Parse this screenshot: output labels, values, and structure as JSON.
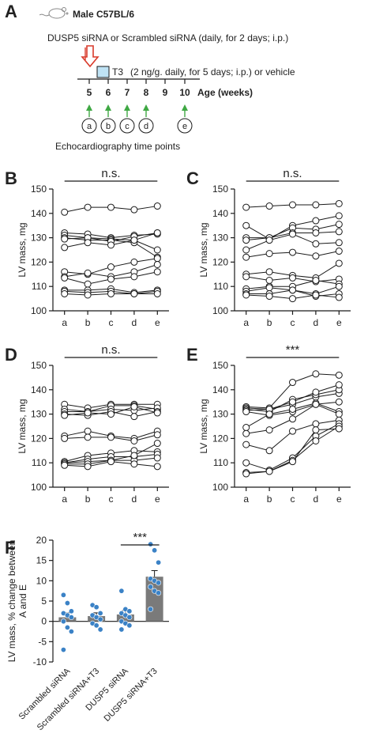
{
  "colors": {
    "ink": "#1a1a1a",
    "arrow_red": "#d93a2b",
    "arrow_green": "#3fa843",
    "t3_box": "#bfe3f5",
    "bar_gray": "#7a7a7a",
    "dot_blue": "#3b82c6"
  },
  "panel_a": {
    "letter": "A",
    "mouse_icon": "mouse-icon",
    "strain": "Male C57BL/6",
    "sirna_text": "DUSP5 siRNA or Scrambled siRNA (daily, for 2 days; i.p.)",
    "t3_label": "T3",
    "t3_text": "(2 ng/g. daily, for 5 days; i.p.) or vehicle",
    "weeks": [
      "5",
      "6",
      "7",
      "8",
      "9",
      "10"
    ],
    "age_label": "Age (weeks)",
    "echo_points": [
      "a",
      "b",
      "c",
      "d",
      "e"
    ],
    "echo_caption": "Echocardiography time points"
  },
  "chart_data": [
    {
      "panel": "B",
      "type": "line",
      "x": [
        "a",
        "b",
        "c",
        "d",
        "e"
      ],
      "ylabel": "LV mass, mg",
      "ylim": [
        100,
        150
      ],
      "yticks": [
        100,
        110,
        120,
        130,
        140,
        150
      ],
      "significance": "n.s.",
      "series": [
        {
          "values": [
            140.5,
            142.5,
            142.5,
            141.5,
            143
          ]
        },
        {
          "values": [
            132,
            131.5,
            130,
            131,
            131.5
          ]
        },
        {
          "values": [
            131,
            130,
            129.5,
            129,
            132
          ]
        },
        {
          "values": [
            130,
            129,
            129,
            128,
            122
          ]
        },
        {
          "values": [
            129.5,
            130,
            128.5,
            130.5,
            132
          ]
        },
        {
          "values": [
            126,
            128,
            127,
            129,
            125
          ]
        },
        {
          "values": [
            116,
            115,
            118,
            120,
            121.5
          ]
        },
        {
          "values": [
            114,
            115.5,
            114,
            116,
            119
          ]
        },
        {
          "values": [
            113.5,
            111,
            113,
            114,
            116
          ]
        },
        {
          "values": [
            108.5,
            108.5,
            109,
            107.5,
            108.5
          ]
        },
        {
          "values": [
            108,
            107.5,
            108,
            107,
            108
          ]
        },
        {
          "values": [
            107,
            106.5,
            107,
            107,
            107
          ]
        }
      ]
    },
    {
      "panel": "C",
      "type": "line",
      "x": [
        "a",
        "b",
        "c",
        "d",
        "e"
      ],
      "ylabel": "LV mass, mg",
      "ylim": [
        100,
        150
      ],
      "yticks": [
        100,
        110,
        120,
        130,
        140,
        150
      ],
      "significance": "n.s.",
      "series": [
        {
          "values": [
            142.5,
            143,
            143.5,
            143.5,
            144
          ]
        },
        {
          "values": [
            135,
            129.5,
            135,
            137,
            139
          ]
        },
        {
          "values": [
            130,
            130,
            134,
            133.5,
            135.5
          ]
        },
        {
          "values": [
            129,
            130,
            132,
            132,
            132.5
          ]
        },
        {
          "values": [
            125,
            129,
            131.5,
            127.5,
            128
          ]
        },
        {
          "values": [
            122,
            123.5,
            124,
            122.5,
            124.5
          ]
        },
        {
          "values": [
            115,
            116,
            114.5,
            113.5,
            119.5
          ]
        },
        {
          "values": [
            114,
            112.5,
            113.5,
            112,
            113
          ]
        },
        {
          "values": [
            109,
            110,
            110,
            112.5,
            111
          ]
        },
        {
          "values": [
            108,
            109.5,
            108.5,
            106,
            107
          ]
        },
        {
          "values": [
            107,
            107,
            108.5,
            107,
            110
          ]
        },
        {
          "values": [
            106.5,
            106,
            105,
            106.5,
            105.5
          ]
        }
      ]
    },
    {
      "panel": "D",
      "type": "line",
      "x": [
        "a",
        "b",
        "c",
        "d",
        "e"
      ],
      "ylabel": "LV mass, mg",
      "ylim": [
        100,
        150
      ],
      "yticks": [
        100,
        110,
        120,
        130,
        140,
        150
      ],
      "significance": "n.s.",
      "series": [
        {
          "values": [
            134,
            132.5,
            134,
            134,
            134
          ]
        },
        {
          "values": [
            132,
            131,
            133.5,
            133.5,
            132
          ]
        },
        {
          "values": [
            131,
            131,
            132,
            131.5,
            132.5
          ]
        },
        {
          "values": [
            130,
            129.5,
            131,
            129,
            131
          ]
        },
        {
          "values": [
            129.5,
            130.5,
            130,
            133,
            130.5
          ]
        },
        {
          "values": [
            121,
            123,
            121,
            120,
            123
          ]
        },
        {
          "values": [
            120,
            120.5,
            120.5,
            119,
            121.5
          ]
        },
        {
          "values": [
            110.5,
            113,
            114,
            115,
            114.5
          ]
        },
        {
          "values": [
            110,
            111.5,
            112.5,
            112.5,
            113.5
          ]
        },
        {
          "values": [
            110,
            110.5,
            111,
            111,
            112
          ]
        },
        {
          "values": [
            109.5,
            109.5,
            111,
            113,
            118
          ]
        },
        {
          "values": [
            109,
            108.5,
            110.5,
            109.5,
            108.5
          ]
        }
      ]
    },
    {
      "panel": "E",
      "type": "line",
      "x": [
        "a",
        "b",
        "c",
        "d",
        "e"
      ],
      "ylabel": "LV mass, mg",
      "ylim": [
        100,
        150
      ],
      "yticks": [
        100,
        110,
        120,
        130,
        140,
        150
      ],
      "significance": "***",
      "series": [
        {
          "values": [
            133,
            132.5,
            143,
            146.5,
            146
          ]
        },
        {
          "values": [
            132.5,
            132,
            134,
            137,
            138.5
          ]
        },
        {
          "values": [
            132,
            131,
            136,
            138,
            140
          ]
        },
        {
          "values": [
            131.5,
            132,
            135,
            139,
            142
          ]
        },
        {
          "values": [
            131,
            129.5,
            131,
            134,
            135
          ]
        },
        {
          "values": [
            124.5,
            130,
            132,
            134.5,
            131
          ]
        },
        {
          "values": [
            122,
            123.5,
            128,
            134,
            130
          ]
        },
        {
          "values": [
            117.5,
            115,
            123,
            126,
            127.5
          ]
        },
        {
          "values": [
            110,
            107,
            112,
            121,
            126
          ]
        },
        {
          "values": [
            106,
            106.5,
            111,
            119,
            125
          ]
        },
        {
          "values": [
            105.5,
            106.5,
            110.5,
            123.5,
            124
          ]
        }
      ]
    },
    {
      "panel": "F",
      "type": "bar",
      "ylabel": "LV mass, % change between A and E",
      "ylim": [
        -10,
        20
      ],
      "yticks": [
        -10,
        -5,
        0,
        5,
        10,
        15,
        20
      ],
      "categories": [
        "Scrambled siRNA",
        "Scrambled siRNA+T3",
        "DUSP5 siRNA",
        "DUSP5 siRNA+T3"
      ],
      "values": [
        1.0,
        1.3,
        1.7,
        11.0
      ],
      "errors": [
        1.1,
        0.8,
        1.0,
        1.5
      ],
      "points": [
        [
          6.5,
          4.5,
          2.5,
          2.0,
          1.5,
          1.0,
          0.0,
          -1.5,
          -2.5,
          -7.0
        ],
        [
          4.0,
          3.5,
          2.0,
          1.5,
          1.0,
          0.5,
          -0.5,
          -1.0,
          -2.0
        ],
        [
          7.5,
          3.0,
          2.5,
          2.0,
          1.5,
          1.0,
          0.0,
          -0.5,
          -1.0,
          -2.0
        ],
        [
          19.0,
          17.5,
          14.5,
          10.5,
          10.0,
          9.5,
          8.5,
          7.5,
          7.0,
          3.0
        ]
      ],
      "significance": "***"
    }
  ]
}
